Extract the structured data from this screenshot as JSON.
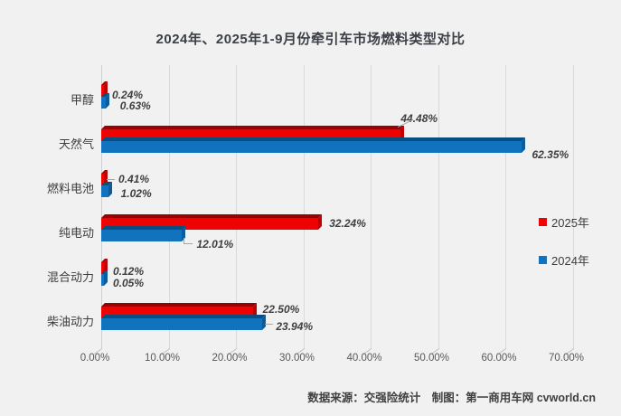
{
  "title": "2024年、2025年1-9月份牵引车市场燃料类型对比",
  "footer": {
    "text": "数据来源：交强险统计　制图：第一商用车网 cvworld.cn"
  },
  "chart_data": {
    "type": "bar",
    "orientation": "horizontal",
    "title": "2024年、2025年1-9月份牵引车市场燃料类型对比",
    "categories": [
      "甲醇",
      "天然气",
      "燃料电池",
      "纯电动",
      "混合动力",
      "柴油动力"
    ],
    "xlim": [
      0,
      70
    ],
    "x_ticks": [
      "0.00%",
      "10.00%",
      "20.00%",
      "30.00%",
      "40.00%",
      "50.00%",
      "60.00%",
      "70.00%"
    ],
    "grid": true,
    "legend_position": "right",
    "series": [
      {
        "name": "2025年",
        "color": "#ef0202",
        "color_top": "#9c0000",
        "color_end": "#c00000",
        "points": [
          {
            "value": 0.24,
            "label": "0.24%",
            "dx": 5,
            "dy": 5,
            "leader": "none"
          },
          {
            "value": 44.48,
            "label": "44.48%",
            "dx": -4,
            "dy": -18,
            "leader": "diagonal"
          },
          {
            "value": 0.41,
            "label": "0.41%",
            "dx": 12,
            "dy": 0,
            "leader": "dash"
          },
          {
            "value": 32.24,
            "label": "32.24%",
            "dx": 8,
            "dy": 0,
            "leader": "none"
          },
          {
            "value": 0.12,
            "label": "0.12%",
            "dx": 6,
            "dy": 4,
            "leader": "none"
          },
          {
            "value": 22.5,
            "label": "22.50%",
            "dx": 7,
            "dy": -3,
            "leader": "none"
          }
        ]
      },
      {
        "name": "2024年",
        "color": "#1173bd",
        "color_top": "#0a4d80",
        "color_end": "#0c5c9c",
        "points": [
          {
            "value": 0.63,
            "label": "0.63%",
            "dx": 12,
            "dy": 4,
            "leader": "none"
          },
          {
            "value": 62.35,
            "label": "62.35%",
            "dx": 8,
            "dy": 9,
            "leader": "none"
          },
          {
            "value": 1.02,
            "label": "1.02%",
            "dx": 10,
            "dy": 3,
            "leader": "none"
          },
          {
            "value": 12.01,
            "label": "12.01%",
            "dx": 12,
            "dy": 10,
            "leader": "bent"
          },
          {
            "value": 0.05,
            "label": "0.05%",
            "dx": 6,
            "dy": 4,
            "leader": "none"
          },
          {
            "value": 23.94,
            "label": "23.94%",
            "dx": 11,
            "dy": 3,
            "leader": "dash"
          }
        ]
      }
    ]
  }
}
